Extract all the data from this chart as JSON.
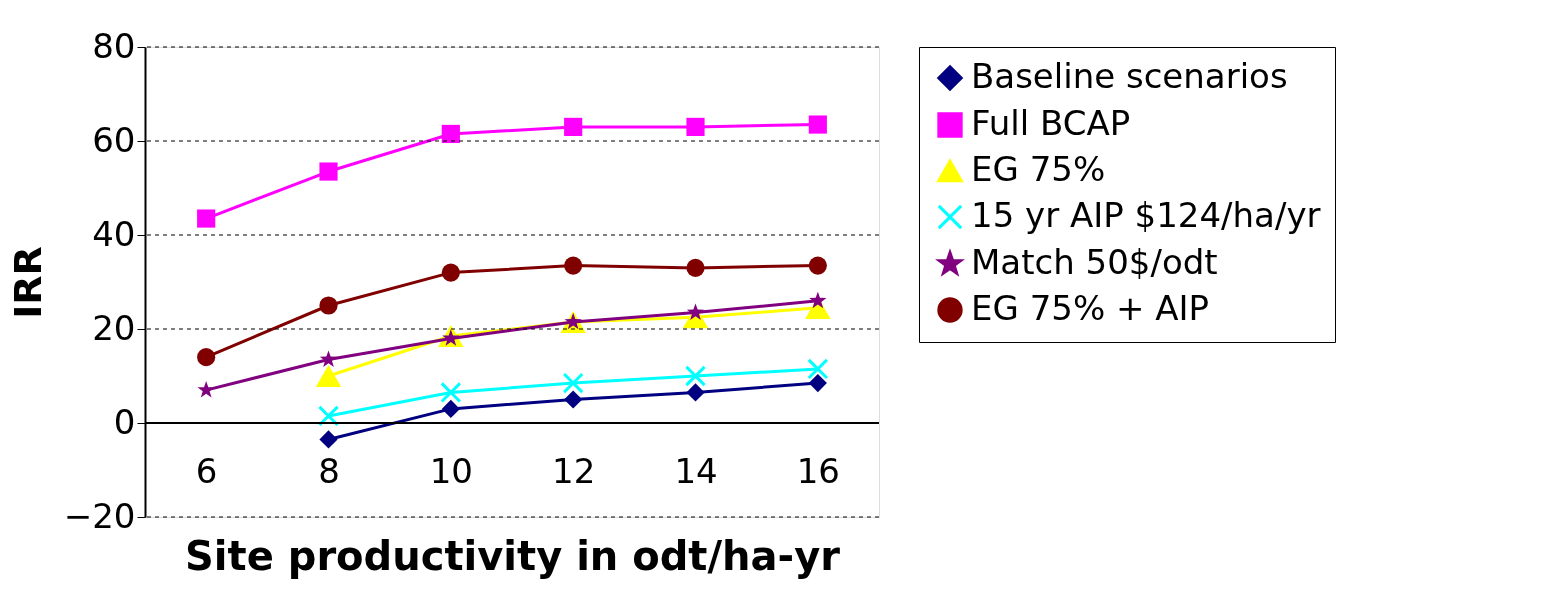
{
  "chart_data": {
    "type": "line",
    "xlabel": "Site productivity in odt/ha-yr",
    "ylabel": "IRR",
    "categories": [
      "6",
      "8",
      "10",
      "12",
      "14",
      "16"
    ],
    "ylim": [
      -20,
      80
    ],
    "yticks": [
      -20,
      0,
      20,
      40,
      60,
      80
    ],
    "grid": "y",
    "legend": "top right",
    "line_style": "solid",
    "series": [
      {
        "name": "Baseline scenarios",
        "color": "#000080",
        "marker": "diamond",
        "values": [
          null,
          -3.5,
          3,
          5,
          6.5,
          8.5
        ]
      },
      {
        "name": "Full BCAP",
        "color": "#ff00ff",
        "marker": "square",
        "values": [
          43.5,
          53.5,
          61.5,
          63,
          63,
          63.5
        ]
      },
      {
        "name": "EG 75%",
        "color": "#ffff00",
        "marker": "triangle",
        "values": [
          null,
          10,
          18.5,
          21.5,
          22.5,
          24.5
        ]
      },
      {
        "name": "15 yr AIP $124/ha/yr",
        "color": "#00ffff",
        "marker": "cross",
        "values": [
          null,
          1.5,
          6.5,
          8.5,
          10,
          11.5
        ]
      },
      {
        "name": "Match 50$/odt",
        "color": "#800080",
        "marker": "star",
        "values": [
          7,
          13.5,
          18,
          21.5,
          23.5,
          26
        ]
      },
      {
        "name": "EG 75% + AIP",
        "color": "#800000",
        "marker": "circle",
        "values": [
          14,
          25,
          32,
          33.5,
          33,
          33.5
        ]
      }
    ]
  }
}
